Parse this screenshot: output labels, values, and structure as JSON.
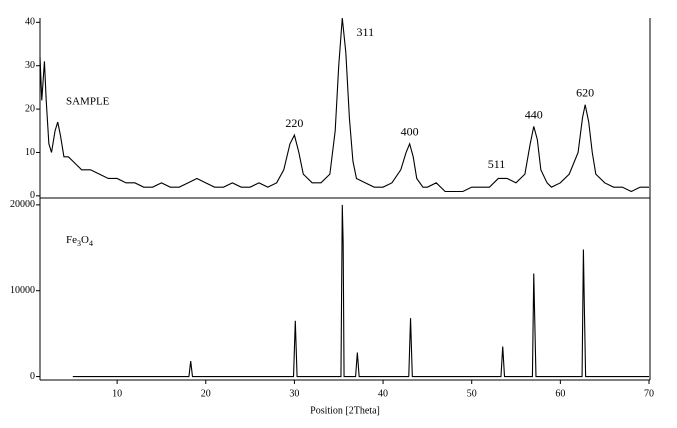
{
  "chart_data": [
    {
      "type": "line",
      "label": "SAMPLE",
      "color": "#000000",
      "xlim": [
        1.3,
        70
      ],
      "ylim": [
        -0.5,
        41
      ],
      "yticks": [
        0,
        10,
        20,
        30,
        40
      ],
      "x": [
        1.3,
        1.5,
        1.8,
        2.0,
        2.3,
        2.6,
        3.0,
        3.3,
        3.6,
        4.0,
        4.5,
        5,
        5.5,
        6,
        7,
        8,
        9,
        10,
        11,
        12,
        13,
        14,
        15,
        16,
        17,
        18,
        19,
        20,
        21,
        22,
        23,
        24,
        25,
        26,
        27,
        28,
        28.8,
        29.5,
        30,
        30.5,
        31,
        32,
        33,
        34,
        34.6,
        35.0,
        35.4,
        35.8,
        36.2,
        36.6,
        37,
        38,
        39,
        40,
        41,
        42,
        42.6,
        43,
        43.4,
        43.8,
        44.5,
        45,
        46,
        47,
        48,
        49,
        50,
        51,
        52,
        53,
        54,
        55,
        56,
        56.6,
        57,
        57.4,
        57.8,
        58.5,
        59,
        60,
        61,
        62,
        62.5,
        62.8,
        63.2,
        63.6,
        64,
        65,
        66,
        67,
        68,
        69,
        70
      ],
      "values": [
        32,
        22,
        31,
        22,
        12,
        10,
        15,
        17,
        14,
        9,
        9,
        8,
        7,
        6,
        6,
        5,
        4,
        4,
        3,
        3,
        2,
        2,
        3,
        2,
        2,
        3,
        4,
        3,
        2,
        2,
        3,
        2,
        2,
        3,
        2,
        3,
        6,
        12,
        14,
        10,
        5,
        3,
        3,
        5,
        15,
        30,
        41,
        33,
        18,
        8,
        4,
        3,
        2,
        2,
        3,
        6,
        10,
        12,
        9,
        4,
        2,
        2,
        3,
        1,
        1,
        1,
        2,
        2,
        2,
        4,
        4,
        3,
        5,
        12,
        16,
        13,
        6,
        3,
        2,
        3,
        5,
        10,
        18,
        21,
        17,
        10,
        5,
        3,
        2,
        2,
        1,
        2,
        2
      ],
      "annotations": [
        {
          "text": "220",
          "x": 30.0,
          "y": 16.5
        },
        {
          "text": "311",
          "x": 38.0,
          "y": 37.5
        },
        {
          "text": "400",
          "x": 43.0,
          "y": 14.5
        },
        {
          "text": "511",
          "x": 52.8,
          "y": 7.0
        },
        {
          "text": "440",
          "x": 57.0,
          "y": 18.5
        },
        {
          "text": "620",
          "x": 62.8,
          "y": 23.5
        }
      ]
    },
    {
      "type": "line",
      "label": "Fe3O4",
      "color": "#000000",
      "xlabel": "Position [2Theta]",
      "xlim": [
        1.3,
        70
      ],
      "xticks": [
        10,
        20,
        30,
        40,
        50,
        60,
        70
      ],
      "ylim": [
        -400,
        20800
      ],
      "yticks": [
        0,
        10000,
        20000
      ],
      "x": [
        5,
        18.1,
        18.3,
        18.5,
        29.9,
        30.1,
        30.3,
        35.25,
        35.4,
        35.5,
        35.6,
        36.9,
        37.1,
        37.3,
        42.9,
        43.1,
        43.3,
        53.3,
        53.5,
        53.7,
        56.85,
        57.0,
        57.1,
        57.25,
        62.45,
        62.6,
        62.7,
        62.85,
        70
      ],
      "values": [
        0,
        0,
        1800,
        0,
        0,
        6500,
        0,
        0,
        20000,
        15500,
        0,
        0,
        2800,
        0,
        0,
        6800,
        0,
        0,
        3500,
        0,
        0,
        12000,
        7200,
        0,
        0,
        14800,
        8500,
        0,
        0
      ]
    }
  ]
}
